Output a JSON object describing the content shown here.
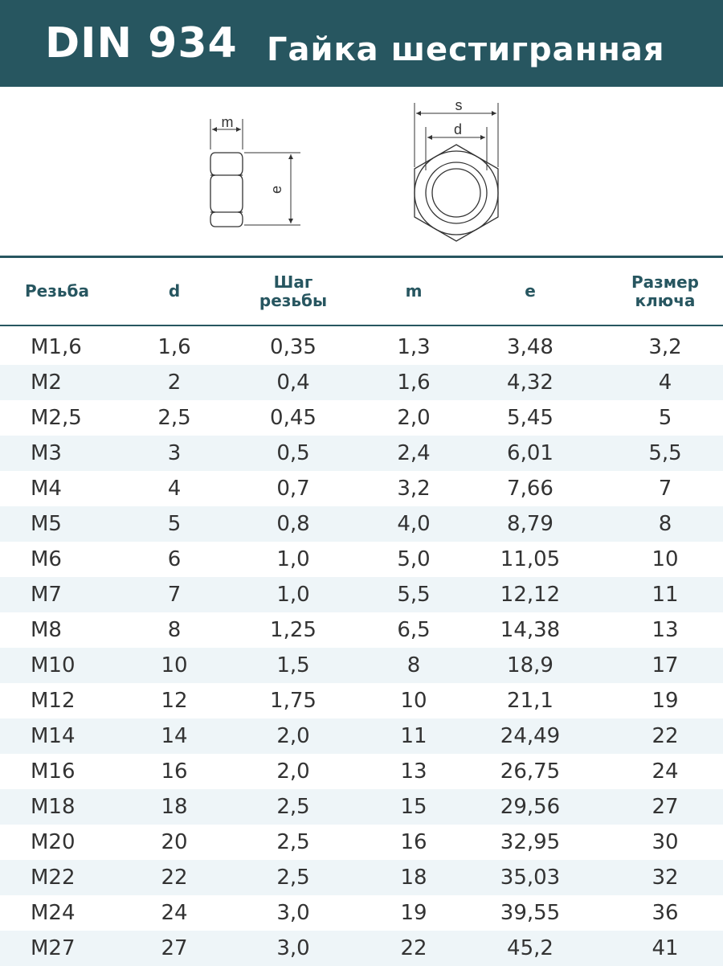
{
  "header": {
    "code": "DIN 934",
    "name": "Гайка шестигранная"
  },
  "drawing_labels": {
    "side_m": "m",
    "side_e": "e",
    "front_s": "s",
    "front_d": "d"
  },
  "table": {
    "columns": [
      "Резьба",
      "d",
      "Шаг резьбы",
      "m",
      "e",
      "Размер ключа"
    ],
    "column_lines": [
      [
        "Резьба"
      ],
      [
        "d"
      ],
      [
        "Шаг",
        "резьбы"
      ],
      [
        "m"
      ],
      [
        "e"
      ],
      [
        "Размер",
        "ключа"
      ]
    ],
    "rows": [
      [
        "M1,6",
        "1,6",
        "0,35",
        "1,3",
        "3,48",
        "3,2"
      ],
      [
        "M2",
        "2",
        "0,4",
        "1,6",
        "4,32",
        "4"
      ],
      [
        "M2,5",
        "2,5",
        "0,45",
        "2,0",
        "5,45",
        "5"
      ],
      [
        "M3",
        "3",
        "0,5",
        "2,4",
        "6,01",
        "5,5"
      ],
      [
        "M4",
        "4",
        "0,7",
        "3,2",
        "7,66",
        "7"
      ],
      [
        "M5",
        "5",
        "0,8",
        "4,0",
        "8,79",
        "8"
      ],
      [
        "M6",
        "6",
        "1,0",
        "5,0",
        "11,05",
        "10"
      ],
      [
        "M7",
        "7",
        "1,0",
        "5,5",
        "12,12",
        "11"
      ],
      [
        "M8",
        "8",
        "1,25",
        "6,5",
        "14,38",
        "13"
      ],
      [
        "M10",
        "10",
        "1,5",
        "8",
        "18,9",
        "17"
      ],
      [
        "M12",
        "12",
        "1,75",
        "10",
        "21,1",
        "19"
      ],
      [
        "M14",
        "14",
        "2,0",
        "11",
        "24,49",
        "22"
      ],
      [
        "M16",
        "16",
        "2,0",
        "13",
        "26,75",
        "24"
      ],
      [
        "M18",
        "18",
        "2,5",
        "15",
        "29,56",
        "27"
      ],
      [
        "M20",
        "20",
        "2,5",
        "16",
        "32,95",
        "30"
      ],
      [
        "M22",
        "22",
        "2,5",
        "18",
        "35,03",
        "32"
      ],
      [
        "M24",
        "24",
        "3,0",
        "19",
        "39,55",
        "36"
      ],
      [
        "M27",
        "27",
        "3,0",
        "22",
        "45,2",
        "41"
      ]
    ]
  },
  "colors": {
    "header_bg": "#275660",
    "header_text": "#ffffff",
    "head_text": "#275660",
    "row_alt": "#eef5f8",
    "cell_text": "#333333"
  }
}
